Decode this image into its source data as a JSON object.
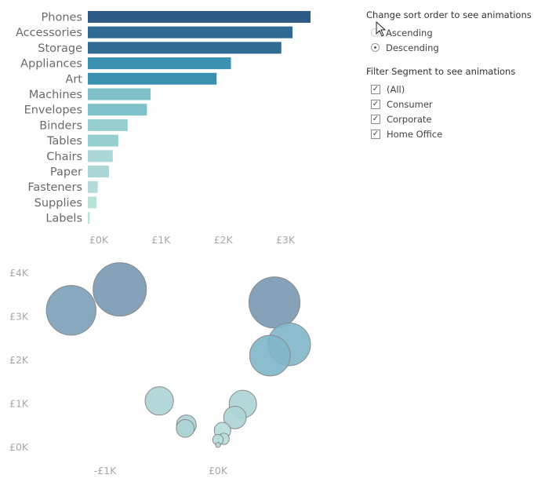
{
  "chart_data": [
    {
      "type": "bar",
      "orientation": "horizontal",
      "title": "",
      "xlabel": "",
      "ylabel": "",
      "categories": [
        "Phones",
        "Accessories",
        "Storage",
        "Appliances",
        "Art",
        "Machines",
        "Envelopes",
        "Binders",
        "Tables",
        "Chairs",
        "Paper",
        "Fasteners",
        "Supplies",
        "Labels"
      ],
      "values": [
        3580,
        3290,
        3110,
        2300,
        2070,
        1010,
        950,
        640,
        490,
        400,
        340,
        160,
        140,
        30
      ],
      "colors": [
        "#2d5a87",
        "#306a93",
        "#316a93",
        "#3a92b0",
        "#3a92b0",
        "#7fc1c8",
        "#7fc1c8",
        "#97cfd0",
        "#97cfd0",
        "#aad6d6",
        "#aad6d6",
        "#b2dbd9",
        "#b9e2da",
        "#b9e2da"
      ],
      "xlim": [
        0,
        3600
      ],
      "x_ticks": [
        {
          "value": 0,
          "label": "£0K"
        },
        {
          "value": 1000,
          "label": "£1K"
        },
        {
          "value": 2000,
          "label": "£2K"
        },
        {
          "value": 3000,
          "label": "£3K"
        }
      ],
      "grid": false
    },
    {
      "type": "scatter",
      "subtype": "bubble",
      "title": "",
      "xlabel": "",
      "ylabel": "",
      "xlim": [
        -1.55,
        1.85
      ],
      "ylim": [
        -0.25,
        4.3
      ],
      "units": "£K",
      "x_ticks": [
        {
          "value": -1,
          "label": "-£1K"
        },
        {
          "value": 0,
          "label": "£0K"
        }
      ],
      "y_ticks": [
        {
          "value": 0,
          "label": "£0K"
        },
        {
          "value": 1,
          "label": "£1K"
        },
        {
          "value": 2,
          "label": "£2K"
        },
        {
          "value": 3,
          "label": "£3K"
        },
        {
          "value": 4,
          "label": "£4K"
        }
      ],
      "points": [
        {
          "x": -1.3,
          "y": 3.13,
          "size": 3.11,
          "color": "#7a9fb8"
        },
        {
          "x": -0.87,
          "y": 3.61,
          "size": 3.58,
          "color": "#7898b2"
        },
        {
          "x": 0.5,
          "y": 3.31,
          "size": 3.29,
          "color": "#7898b2"
        },
        {
          "x": 0.63,
          "y": 2.35,
          "size": 2.3,
          "color": "#7fb6c9"
        },
        {
          "x": 0.46,
          "y": 2.09,
          "size": 2.07,
          "color": "#7fb6c9"
        },
        {
          "x": -0.52,
          "y": 1.05,
          "size": 1.01,
          "color": "#acd4d6"
        },
        {
          "x": 0.22,
          "y": 0.98,
          "size": 0.95,
          "color": "#acd4d6"
        },
        {
          "x": 0.15,
          "y": 0.67,
          "size": 0.64,
          "color": "#acd4d6"
        },
        {
          "x": -0.28,
          "y": 0.5,
          "size": 0.49,
          "color": "#acd4d6"
        },
        {
          "x": -0.29,
          "y": 0.42,
          "size": 0.4,
          "color": "#acd4d6"
        },
        {
          "x": 0.04,
          "y": 0.37,
          "size": 0.34,
          "color": "#b7dedd"
        },
        {
          "x": 0.05,
          "y": 0.18,
          "size": 0.16,
          "color": "#b7dedd"
        },
        {
          "x": 0.0,
          "y": 0.16,
          "size": 0.14,
          "color": "#b7dedd"
        },
        {
          "x": 0.0,
          "y": 0.04,
          "size": 0.03,
          "color": "#b7dedd"
        }
      ],
      "grid": false
    }
  ],
  "controls": {
    "sort": {
      "title": "Change sort order to see animations",
      "options": [
        {
          "label": "Ascending",
          "selected": false
        },
        {
          "label": "Descending",
          "selected": true
        }
      ]
    },
    "segment": {
      "title": "Filter Segment to see animations",
      "options": [
        {
          "label": "(All)",
          "checked": true
        },
        {
          "label": "Consumer",
          "checked": true
        },
        {
          "label": "Corporate",
          "checked": true
        },
        {
          "label": "Home Office",
          "checked": true
        }
      ],
      "check_glyph": "✓"
    }
  },
  "icons": {
    "cursor": "mouse-pointer-icon"
  }
}
